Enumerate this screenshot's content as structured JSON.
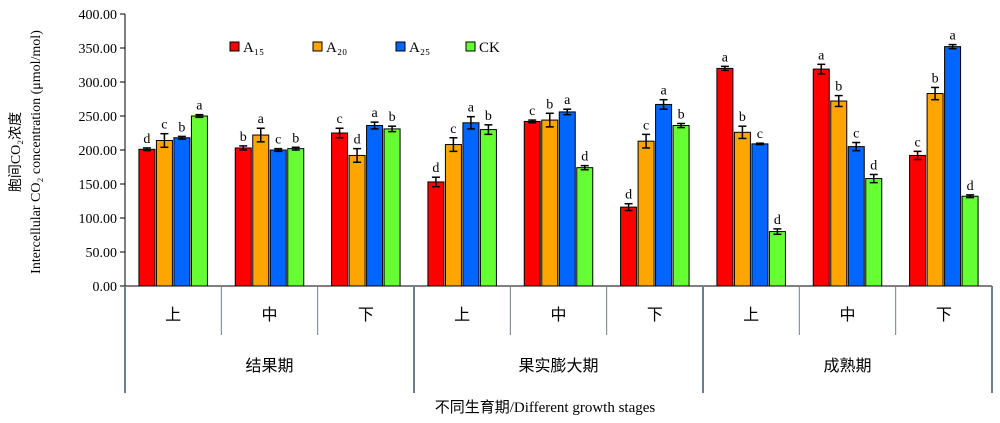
{
  "chart_data": {
    "type": "bar",
    "ylabel_line1": "胞间CO₂浓度",
    "ylabel_line2": "Intercellular CO₂ concentration (μmol/mol)",
    "xlabel": "不同生育期/Different growth stages",
    "ylim": [
      0,
      400
    ],
    "ytick_step": 50,
    "ytick_labels": [
      "0.00",
      "50.00",
      "100.00",
      "150.00",
      "200.00",
      "250.00",
      "300.00",
      "350.00",
      "400.00"
    ],
    "legend_position": "top-left",
    "groups": [
      {
        "label": "结果期",
        "categories": [
          "上",
          "中",
          "下"
        ]
      },
      {
        "label": "果实膨大期",
        "categories": [
          "上",
          "中",
          "下"
        ]
      },
      {
        "label": "成熟期",
        "categories": [
          "上",
          "中",
          "下"
        ]
      }
    ],
    "series": [
      {
        "name": "A₁₅",
        "color": "#ff0000",
        "values": [
          201,
          203,
          225,
          153,
          242,
          116,
          320,
          319,
          192
        ],
        "errors": [
          2,
          3,
          7,
          7,
          2,
          5,
          3,
          7,
          6
        ],
        "letters": [
          "d",
          "b",
          "c",
          "d",
          "c",
          "d",
          "a",
          "a",
          "c"
        ]
      },
      {
        "name": "A₂₀",
        "color": "#ffa500",
        "values": [
          214,
          222,
          192,
          208,
          244,
          213,
          226,
          272,
          283
        ],
        "errors": [
          10,
          10,
          10,
          10,
          10,
          10,
          9,
          8,
          9
        ],
        "letters": [
          "c",
          "a",
          "d",
          "c",
          "b",
          "c",
          "b",
          "b",
          "b"
        ]
      },
      {
        "name": "A₂₅",
        "color": "#0066ff",
        "values": [
          218,
          200,
          236,
          240,
          256,
          267,
          209,
          205,
          352
        ],
        "errors": [
          2,
          2,
          5,
          9,
          4,
          7,
          1,
          6,
          3
        ],
        "letters": [
          "b",
          "c",
          "a",
          "a",
          "a",
          "a",
          "c",
          "c",
          "a"
        ]
      },
      {
        "name": "CK",
        "color": "#66ff33",
        "values": [
          250,
          202,
          231,
          230,
          174,
          236,
          80,
          158,
          132
        ],
        "errors": [
          2,
          2,
          4,
          7,
          3,
          3,
          4,
          6,
          2
        ],
        "letters": [
          "a",
          "b",
          "b",
          "b",
          "d",
          "b",
          "d",
          "d",
          "d"
        ]
      }
    ]
  }
}
